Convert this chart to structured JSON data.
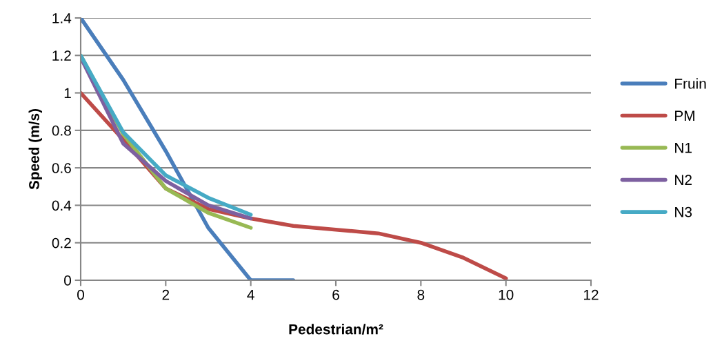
{
  "chart_data": {
    "type": "line",
    "xlabel": "Pedestrian/m²",
    "ylabel": "Speed (m/s)",
    "xlim": [
      0,
      12
    ],
    "xticks": [
      0,
      2,
      4,
      6,
      8,
      10,
      12
    ],
    "ylim": [
      0,
      1.4
    ],
    "yticks": [
      0,
      0.2,
      0.4,
      0.6,
      0.8,
      1,
      1.2,
      1.4
    ],
    "grid": "y",
    "legend": "right",
    "marker": "none",
    "line_style": "solid",
    "series": [
      {
        "name": "Fruin",
        "color": "#4a7ebb",
        "x": [
          0,
          1,
          2,
          3,
          4,
          5
        ],
        "values": [
          1.4,
          1.07,
          0.69,
          0.28,
          0,
          0
        ]
      },
      {
        "name": "PM",
        "color": "#be4b48",
        "x": [
          0,
          1,
          2,
          3,
          4,
          5,
          6,
          7,
          8,
          9,
          10
        ],
        "values": [
          1.0,
          0.75,
          0.49,
          0.38,
          0.33,
          0.29,
          0.27,
          0.25,
          0.2,
          0.12,
          0.01
        ]
      },
      {
        "name": "N1",
        "color": "#98b954",
        "x": [
          0,
          1,
          2,
          3,
          4
        ],
        "values": [
          1.2,
          0.78,
          0.49,
          0.36,
          0.28
        ]
      },
      {
        "name": "N2",
        "color": "#7d60a0",
        "x": [
          0,
          1,
          2,
          3,
          4
        ],
        "values": [
          1.19,
          0.73,
          0.53,
          0.4,
          0.33
        ]
      },
      {
        "name": "N3",
        "color": "#46aac5",
        "x": [
          0,
          1,
          2,
          3,
          4
        ],
        "values": [
          1.2,
          0.79,
          0.56,
          0.44,
          0.35
        ]
      }
    ]
  }
}
